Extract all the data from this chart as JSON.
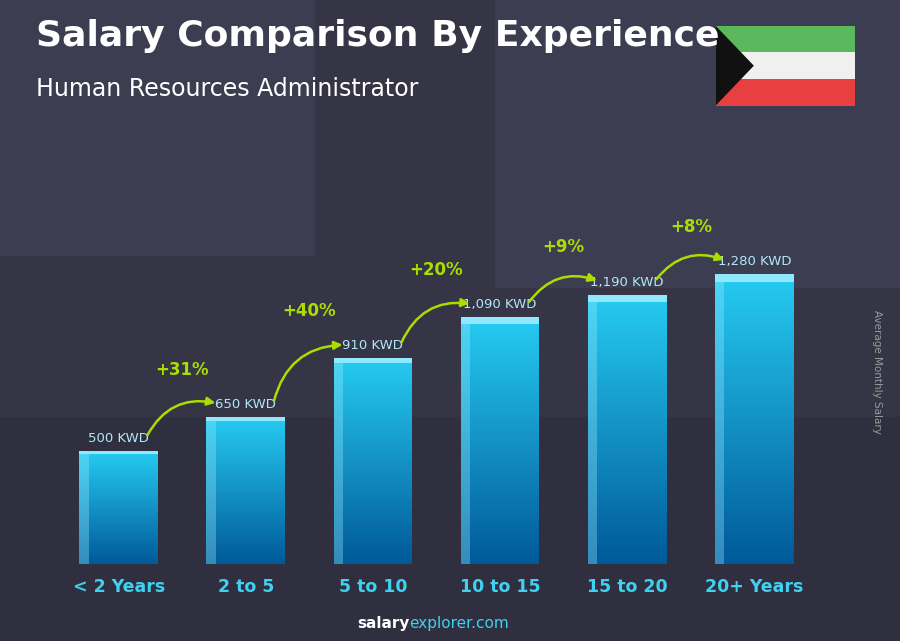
{
  "title": "Salary Comparison By Experience",
  "subtitle": "Human Resources Administrator",
  "categories": [
    "< 2 Years",
    "2 to 5",
    "5 to 10",
    "10 to 15",
    "15 to 20",
    "20+ Years"
  ],
  "values": [
    500,
    650,
    910,
    1090,
    1190,
    1280
  ],
  "labels": [
    "500 KWD",
    "650 KWD",
    "910 KWD",
    "1,090 KWD",
    "1,190 KWD",
    "1,280 KWD"
  ],
  "pct_labels": [
    "+31%",
    "+40%",
    "+20%",
    "+9%",
    "+8%"
  ],
  "bg_dark": "#2c2c3a",
  "bar_color_light": "#40c8e8",
  "bar_color_dark": "#1060b0",
  "text_color_white": "#ffffff",
  "text_color_cyan": "#40d0f0",
  "text_color_green": "#aadd00",
  "label_color": "#b0e8f8",
  "ylabel": "Average Monthly Salary",
  "ylim": [
    0,
    1700
  ],
  "title_fontsize": 26,
  "subtitle_fontsize": 17,
  "bar_width": 0.62,
  "footer_salary_color": "#ffffff",
  "footer_explorer_color": "#40d0f0"
}
